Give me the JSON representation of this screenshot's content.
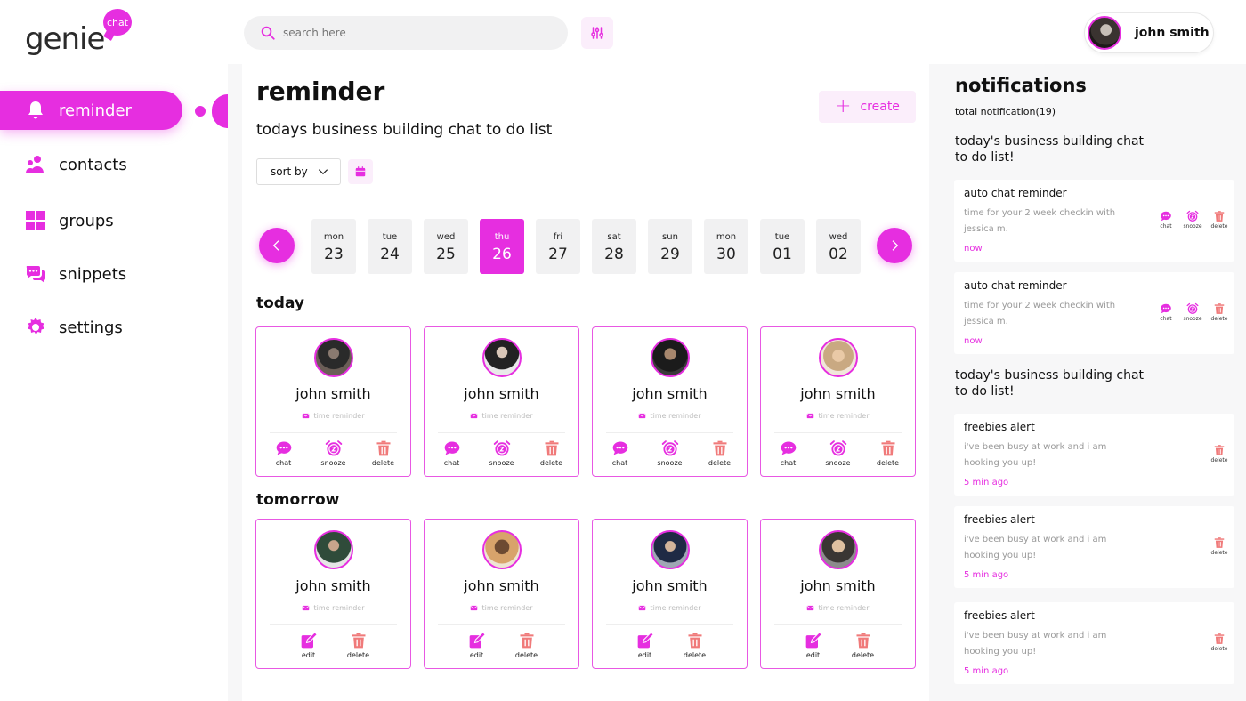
{
  "brand": {
    "name": "genie",
    "badge": "chat"
  },
  "search": {
    "placeholder": "search here"
  },
  "profile": {
    "name": "john smith"
  },
  "sidebar": {
    "items": [
      {
        "label": "reminder",
        "icon": "bell-icon",
        "active": true
      },
      {
        "label": "contacts",
        "icon": "contacts-icon"
      },
      {
        "label": "groups",
        "icon": "grid-icon"
      },
      {
        "label": "snippets",
        "icon": "chat-bubbles-icon"
      },
      {
        "label": "settings",
        "icon": "gear-icon"
      }
    ]
  },
  "main": {
    "title": "reminder",
    "subtitle": "todays business building chat to do list",
    "create_label": "create",
    "sort_label": "sort by",
    "dates": [
      {
        "dow": "mon",
        "num": "23"
      },
      {
        "dow": "tue",
        "num": "24"
      },
      {
        "dow": "wed",
        "num": "25"
      },
      {
        "dow": "thu",
        "num": "26",
        "active": true
      },
      {
        "dow": "fri",
        "num": "27"
      },
      {
        "dow": "sat",
        "num": "28"
      },
      {
        "dow": "sun",
        "num": "29"
      },
      {
        "dow": "mon",
        "num": "30"
      },
      {
        "dow": "tue",
        "num": "01"
      },
      {
        "dow": "wed",
        "num": "02"
      }
    ],
    "today_label": "today",
    "tomorrow_label": "tomorrow",
    "today_cards": [
      {
        "name": "john smith",
        "meta": "time reminder",
        "actions": [
          "chat",
          "snooze",
          "delete"
        ]
      },
      {
        "name": "john smith",
        "meta": "time reminder",
        "actions": [
          "chat",
          "snooze",
          "delete"
        ]
      },
      {
        "name": "john smith",
        "meta": "time reminder",
        "actions": [
          "chat",
          "snooze",
          "delete"
        ]
      },
      {
        "name": "john smith",
        "meta": "time reminder",
        "actions": [
          "chat",
          "snooze",
          "delete"
        ]
      }
    ],
    "tomorrow_cards": [
      {
        "name": "john smith",
        "meta": "time reminder",
        "actions": [
          "edit",
          "delete"
        ]
      },
      {
        "name": "john smith",
        "meta": "time reminder",
        "actions": [
          "edit",
          "delete"
        ]
      },
      {
        "name": "john smith",
        "meta": "time reminder",
        "actions": [
          "edit",
          "delete"
        ]
      },
      {
        "name": "john smith",
        "meta": "time reminder",
        "actions": [
          "edit",
          "delete"
        ]
      }
    ]
  },
  "notifications": {
    "title": "notifications",
    "total": "total notification(19)",
    "group1": "today's business building chat to do list!",
    "group2": "today's business building chat to do list!",
    "items1": [
      {
        "title": "auto chat reminder",
        "body": "time for your 2 week checkin with jessica m.",
        "when": "now",
        "actions": [
          "chat",
          "snooze",
          "delete"
        ]
      },
      {
        "title": "auto chat reminder",
        "body": "time for your 2 week checkin with jessica m.",
        "when": "now",
        "actions": [
          "chat",
          "snooze",
          "delete"
        ]
      }
    ],
    "items2": [
      {
        "title": "freebies alert",
        "body": "i've been busy at work and i am hooking you up!",
        "when": "5 min ago",
        "actions": [
          "delete"
        ]
      },
      {
        "title": "freebies alert",
        "body": "i've been busy at work and i am hooking you up!",
        "when": "5 min ago",
        "actions": [
          "delete"
        ]
      },
      {
        "title": "freebies alert",
        "body": "i've been busy at work and i am hooking you up!",
        "when": "5 min ago",
        "actions": [
          "delete"
        ]
      }
    ]
  },
  "colors": {
    "accent": "#e62ee0",
    "delete": "#f07a7a",
    "accent_soft": "#fbeefb"
  }
}
